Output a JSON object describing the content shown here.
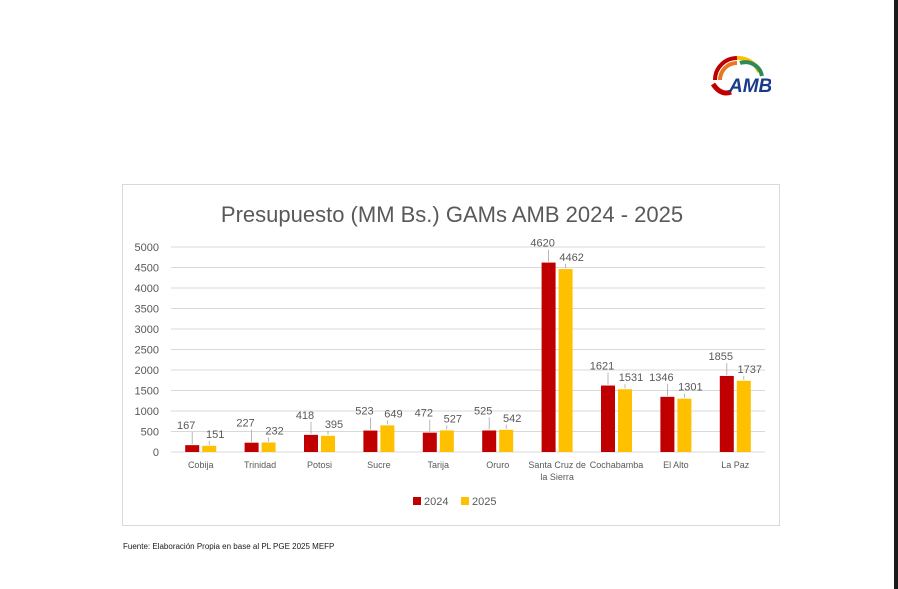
{
  "source_note": "Fuente: Elaboración Propia en base al PL PGE 2025 MEFP",
  "logo": {
    "text": "AMB",
    "tagline": ""
  },
  "colors": {
    "series_2024": "#C00000",
    "series_2025": "#FFC000",
    "grid": "#d9d9d9",
    "text": "#595959"
  },
  "chart_data": {
    "type": "bar",
    "title": "Presupuesto (MM Bs.) GAMs AMB 2024 - 2025",
    "xlabel": "",
    "ylabel": "",
    "ylim": [
      0,
      5000
    ],
    "yticks": [
      0,
      500,
      1000,
      1500,
      2000,
      2500,
      3000,
      3500,
      4000,
      4500,
      5000
    ],
    "grid": true,
    "legend_position": "bottom",
    "categories": [
      [
        "Cobija"
      ],
      [
        "Trinidad"
      ],
      [
        "Potosi"
      ],
      [
        "Sucre"
      ],
      [
        "Tarija"
      ],
      [
        "Oruro"
      ],
      [
        "Santa Cruz de",
        "la Sierra"
      ],
      [
        "Cochabamba"
      ],
      [
        "El Alto"
      ],
      [
        "La Paz"
      ]
    ],
    "series": [
      {
        "name": "2024",
        "color": "#C00000",
        "values": [
          167,
          227,
          418,
          523,
          472,
          525,
          4620,
          1621,
          1346,
          1855
        ]
      },
      {
        "name": "2025",
        "color": "#FFC000",
        "values": [
          151,
          232,
          395,
          649,
          527,
          542,
          4462,
          1531,
          1301,
          1737
        ]
      }
    ]
  }
}
